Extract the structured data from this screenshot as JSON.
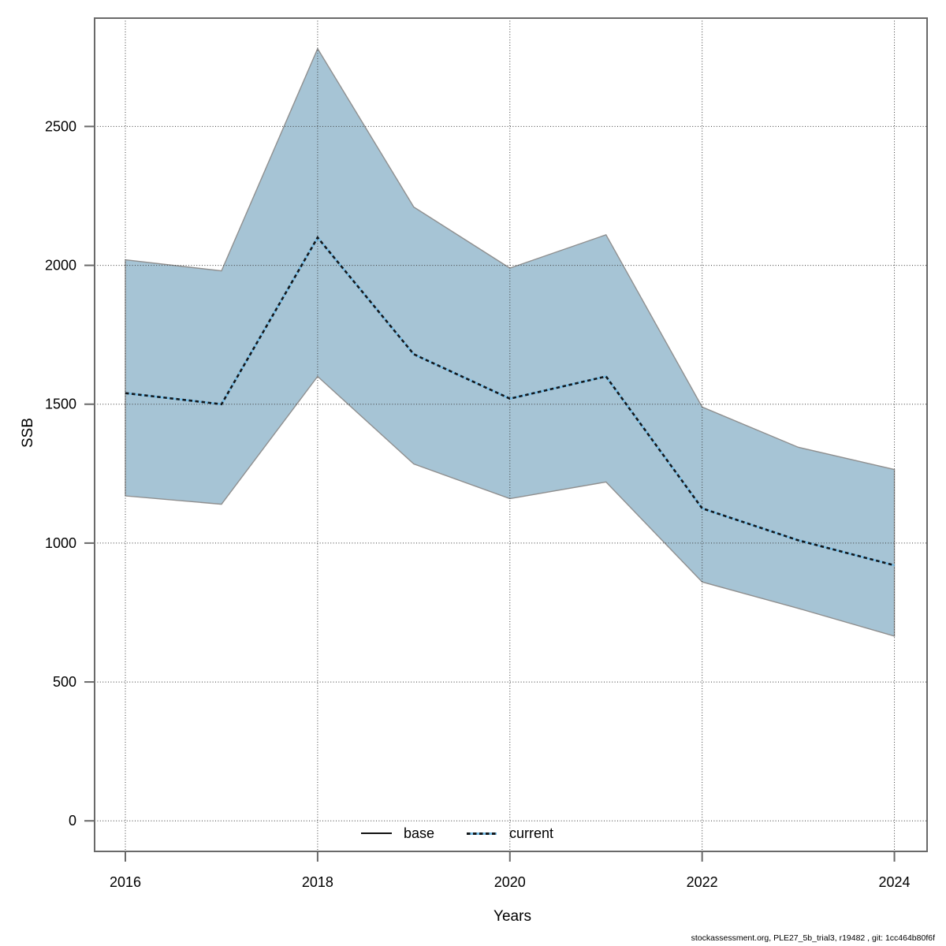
{
  "chart_data": {
    "type": "area",
    "title": "",
    "xlabel": "Years",
    "ylabel": "SSB",
    "x": [
      2016,
      2017,
      2018,
      2019,
      2020,
      2021,
      2022,
      2023,
      2024
    ],
    "series": [
      {
        "name": "current",
        "role": "center-line",
        "line_style": "dashed",
        "values": [
          1540,
          1500,
          2100,
          1680,
          1520,
          1600,
          1125,
          1010,
          920
        ]
      },
      {
        "name": "current_ci_upper",
        "role": "band-upper",
        "values": [
          2020,
          1980,
          2780,
          2210,
          1990,
          2110,
          1490,
          1345,
          1265
        ]
      },
      {
        "name": "current_ci_lower",
        "role": "band-lower",
        "values": [
          1170,
          1140,
          1600,
          1285,
          1160,
          1220,
          860,
          765,
          665
        ]
      }
    ],
    "x_ticks": [
      2016,
      2018,
      2020,
      2022,
      2024
    ],
    "y_ticks": [
      0,
      500,
      1000,
      1500,
      2000,
      2500
    ],
    "xlim": [
      2015.68,
      2024.34
    ],
    "ylim": [
      -110,
      2890
    ],
    "grid": true,
    "legend_position": "bottom",
    "legend": [
      {
        "label": "base",
        "style": "solid-black"
      },
      {
        "label": "current",
        "style": "dashed-black-over-blue"
      }
    ],
    "colors": {
      "band_fill": "#a6c4d5",
      "band_border": "#8f8f8f",
      "current_underlay": "#78bee6",
      "current_dash": "#13181c",
      "grid": "#3a3a3a",
      "axis_box": "#696969",
      "text": "#000000"
    }
  },
  "footer": {
    "text": "stockassessment.org, PLE27_5b_trial3, r19482 , git: 1cc464b80f6f"
  }
}
